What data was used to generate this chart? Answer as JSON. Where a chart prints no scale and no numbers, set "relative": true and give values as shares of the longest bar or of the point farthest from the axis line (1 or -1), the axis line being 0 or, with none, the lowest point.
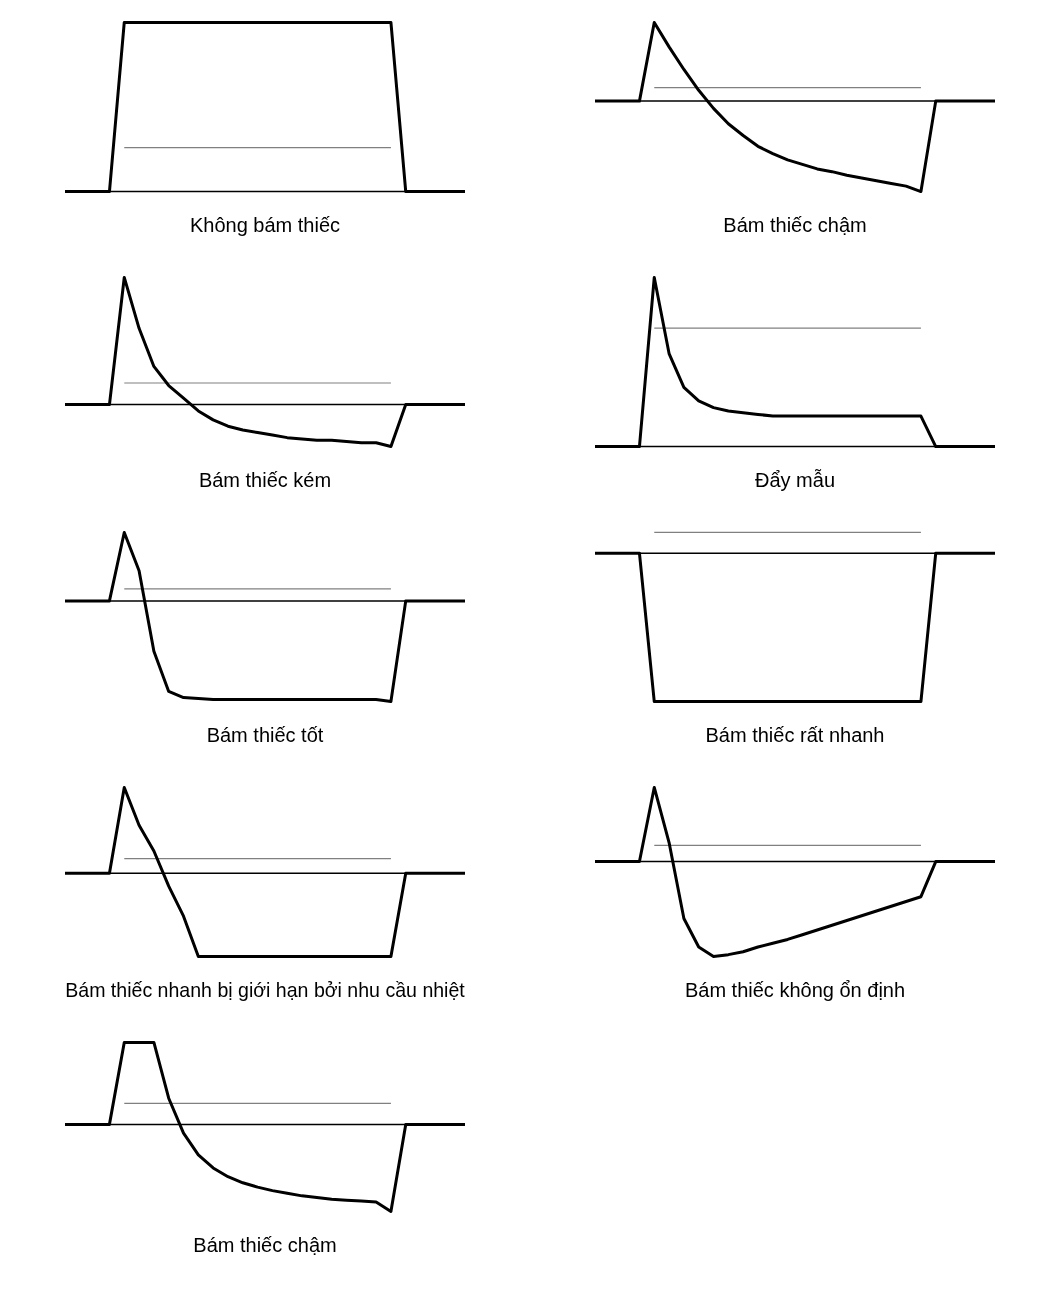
{
  "chart_data": [
    {
      "type": "line",
      "title": "Không bám thiếc",
      "relative": true,
      "categories": [
        null,
        null,
        null,
        null,
        null,
        null,
        null,
        null,
        null,
        null,
        null,
        null,
        null,
        null,
        null,
        null,
        null,
        null,
        null,
        null,
        null,
        null,
        null,
        null,
        null,
        null,
        null,
        null
      ],
      "series": [
        {
          "color": "#000000",
          "values": [
            0,
            0,
            0,
            0,
            1,
            1,
            1,
            1,
            1,
            1,
            1,
            1,
            1,
            1,
            1,
            1,
            1,
            1,
            1,
            1,
            1,
            1,
            1,
            0,
            0,
            0,
            0,
            0
          ]
        }
      ],
      "ref_lines": [
        {
          "axis": "y",
          "value": 0.26,
          "color": "#808080"
        }
      ]
    },
    {
      "type": "line",
      "title": "Bám thiếc chậm",
      "relative": true,
      "categories": [
        null,
        null,
        null,
        null,
        null,
        null,
        null,
        null,
        null,
        null,
        null,
        null,
        null,
        null,
        null,
        null,
        null,
        null,
        null,
        null,
        null,
        null,
        null,
        null,
        null,
        null,
        null,
        null
      ],
      "series": [
        {
          "color": "#000000",
          "values": [
            0,
            0,
            0,
            0,
            0.87,
            0.6,
            0.35,
            0.12,
            -0.08,
            -0.25,
            -0.38,
            -0.5,
            -0.58,
            -0.65,
            -0.7,
            -0.75,
            -0.78,
            -0.82,
            -0.85,
            -0.88,
            -0.91,
            -0.94,
            -1,
            0,
            0,
            0,
            0,
            0
          ]
        }
      ],
      "ref_lines": [
        {
          "axis": "y",
          "value": 0.15,
          "color": "#808080"
        }
      ]
    },
    {
      "type": "line",
      "title": "Bám thiếc kém",
      "relative": true,
      "categories": [
        null,
        null,
        null,
        null,
        null,
        null,
        null,
        null,
        null,
        null,
        null,
        null,
        null,
        null,
        null,
        null,
        null,
        null,
        null,
        null,
        null,
        null,
        null,
        null,
        null,
        null,
        null,
        null
      ],
      "series": [
        {
          "color": "#000000",
          "values": [
            0,
            0,
            0,
            0,
            1,
            0.6,
            0.3,
            0.15,
            0.05,
            -0.05,
            -0.12,
            -0.17,
            -0.2,
            -0.22,
            -0.24,
            -0.26,
            -0.27,
            -0.28,
            -0.28,
            -0.29,
            -0.3,
            -0.3,
            -0.33,
            0,
            0,
            0,
            0,
            0
          ]
        }
      ],
      "ref_lines": [
        {
          "axis": "y",
          "value": 0.17,
          "color": "#808080"
        }
      ]
    },
    {
      "type": "line",
      "title": "Đẩy mẫu",
      "relative": true,
      "categories": [
        null,
        null,
        null,
        null,
        null,
        null,
        null,
        null,
        null,
        null,
        null,
        null,
        null,
        null,
        null,
        null,
        null,
        null,
        null,
        null,
        null,
        null,
        null,
        null,
        null,
        null,
        null,
        null
      ],
      "series": [
        {
          "color": "#000000",
          "values": [
            0,
            0,
            0,
            0,
            1,
            0.55,
            0.35,
            0.27,
            0.23,
            0.21,
            0.2,
            0.19,
            0.18,
            0.18,
            0.18,
            0.18,
            0.18,
            0.18,
            0.18,
            0.18,
            0.18,
            0.18,
            0.18,
            0,
            0,
            0,
            0,
            0
          ]
        }
      ],
      "ref_lines": [
        {
          "axis": "y",
          "value": 0.7,
          "color": "#808080"
        }
      ]
    },
    {
      "type": "line",
      "title": "Bám thiếc tốt",
      "relative": true,
      "categories": [
        null,
        null,
        null,
        null,
        null,
        null,
        null,
        null,
        null,
        null,
        null,
        null,
        null,
        null,
        null,
        null,
        null,
        null,
        null,
        null,
        null,
        null,
        null,
        null,
        null,
        null,
        null,
        null
      ],
      "series": [
        {
          "color": "#000000",
          "values": [
            0,
            0,
            0,
            0,
            0.68,
            0.3,
            -0.5,
            -0.9,
            -0.96,
            -0.97,
            -0.98,
            -0.98,
            -0.98,
            -0.98,
            -0.98,
            -0.98,
            -0.98,
            -0.98,
            -0.98,
            -0.98,
            -0.98,
            -0.98,
            -1,
            0,
            0,
            0,
            0,
            0
          ]
        }
      ],
      "ref_lines": [
        {
          "axis": "y",
          "value": 0.12,
          "color": "#808080"
        }
      ]
    },
    {
      "type": "line",
      "title": "Bám thiếc rất nhanh",
      "relative": true,
      "categories": [
        null,
        null,
        null,
        null,
        null,
        null,
        null,
        null,
        null,
        null,
        null,
        null,
        null,
        null,
        null,
        null,
        null,
        null,
        null,
        null,
        null,
        null,
        null,
        null,
        null,
        null,
        null,
        null
      ],
      "series": [
        {
          "color": "#000000",
          "values": [
            0,
            0,
            0,
            0,
            -1,
            -1,
            -1,
            -1,
            -1,
            -1,
            -1,
            -1,
            -1,
            -1,
            -1,
            -1,
            -1,
            -1,
            -1,
            -1,
            -1,
            -1,
            -1,
            0,
            0,
            0,
            0,
            0
          ]
        }
      ],
      "ref_lines": [
        {
          "axis": "y",
          "value": 0.14,
          "color": "#808080"
        }
      ]
    },
    {
      "type": "line",
      "title": "Bám thiếc nhanh bị giới hạn bởi nhu cầu nhiệt",
      "relative": true,
      "categories": [
        null,
        null,
        null,
        null,
        null,
        null,
        null,
        null,
        null,
        null,
        null,
        null,
        null,
        null,
        null,
        null,
        null,
        null,
        null,
        null,
        null,
        null,
        null,
        null,
        null,
        null,
        null,
        null
      ],
      "series": [
        {
          "color": "#000000",
          "values": [
            0,
            0,
            0,
            0,
            1,
            0.56,
            0.26,
            -0.15,
            -0.5,
            -0.97,
            -0.97,
            -0.97,
            -0.97,
            -0.97,
            -0.97,
            -0.97,
            -0.97,
            -0.97,
            -0.97,
            -0.97,
            -0.97,
            -0.97,
            -0.97,
            0,
            0,
            0,
            0,
            0
          ]
        }
      ],
      "ref_lines": [
        {
          "axis": "y",
          "value": 0.17,
          "color": "#808080"
        }
      ]
    },
    {
      "type": "line",
      "title": "Bám thiếc không ổn định",
      "relative": true,
      "categories": [
        null,
        null,
        null,
        null,
        null,
        null,
        null,
        null,
        null,
        null,
        null,
        null,
        null,
        null,
        null,
        null,
        null,
        null,
        null,
        null,
        null,
        null,
        null,
        null,
        null,
        null,
        null,
        null
      ],
      "series": [
        {
          "color": "#000000",
          "values": [
            0,
            0,
            0,
            0,
            0.78,
            0.2,
            -0.6,
            -0.9,
            -1,
            -0.98,
            -0.95,
            -0.9,
            -0.86,
            -0.82,
            -0.77,
            -0.72,
            -0.67,
            -0.62,
            -0.57,
            -0.52,
            -0.47,
            -0.42,
            -0.37,
            0,
            0,
            0,
            0,
            0
          ]
        }
      ],
      "ref_lines": [
        {
          "axis": "y",
          "value": 0.17,
          "color": "#808080"
        }
      ]
    },
    {
      "type": "line",
      "title": "Bám thiếc chậm",
      "relative": true,
      "categories": [
        null,
        null,
        null,
        null,
        null,
        null,
        null,
        null,
        null,
        null,
        null,
        null,
        null,
        null,
        null,
        null,
        null,
        null,
        null,
        null,
        null,
        null,
        null,
        null,
        null,
        null,
        null,
        null
      ],
      "series": [
        {
          "color": "#000000",
          "values": [
            0,
            0,
            0,
            0,
            0.94,
            0.94,
            0.94,
            0.3,
            -0.1,
            -0.35,
            -0.5,
            -0.6,
            -0.67,
            -0.72,
            -0.76,
            -0.79,
            -0.82,
            -0.84,
            -0.86,
            -0.87,
            -0.88,
            -0.89,
            -1,
            0,
            0,
            0,
            0,
            0
          ]
        }
      ],
      "ref_lines": [
        {
          "axis": "y",
          "value": 0.24,
          "color": "#808080"
        }
      ]
    }
  ]
}
